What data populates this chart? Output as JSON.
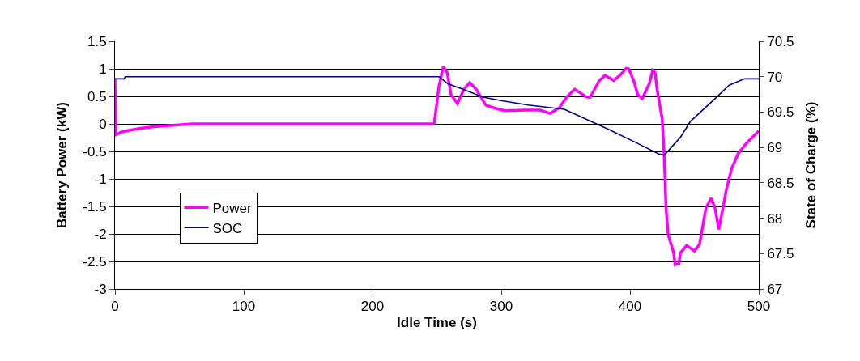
{
  "chart_data": {
    "type": "line",
    "xlabel": "Idle Time (s)",
    "ylabel": "Battery Power (kW)",
    "y2label": "State of Charge (%)",
    "xlim": [
      0,
      500
    ],
    "xticks": [
      0,
      100,
      200,
      300,
      400,
      500
    ],
    "ylim": [
      -3,
      1.5
    ],
    "yticks": [
      -3,
      -2.5,
      -2,
      -1.5,
      -1,
      -0.5,
      0,
      0.5,
      1,
      1.5
    ],
    "y2lim": [
      67,
      70.5
    ],
    "y2ticks": [
      67,
      67.5,
      68,
      68.5,
      69,
      69.5,
      70,
      70.5
    ],
    "grid": "y",
    "legend": "bottom left",
    "marker": "none",
    "line_style": "solid",
    "series": [
      {
        "name": "Power",
        "color": "#ff00ff",
        "x": [
          0,
          0.6,
          5,
          10,
          20,
          30,
          60,
          150,
          247,
          248,
          251.6,
          255,
          258,
          261,
          266,
          271,
          275.5,
          280.5,
          288,
          296,
          302.5,
          319.5,
          330,
          338,
          345,
          351,
          357,
          366,
          369,
          376,
          380.5,
          387.5,
          393,
          397,
          399,
          403,
          406,
          409.5,
          415,
          417.6,
          419.5,
          421,
          425,
          426.5,
          428,
          429.6,
          434,
          435,
          438,
          439,
          444,
          450,
          454,
          459,
          463,
          466,
          469,
          475,
          479,
          484,
          490.5,
          500
        ],
        "values": [
          0.82,
          -0.2,
          -0.15,
          -0.12,
          -0.08,
          -0.05,
          0,
          0,
          0,
          0.02,
          0.68,
          1.04,
          0.93,
          0.53,
          0.37,
          0.63,
          0.75,
          0.63,
          0.34,
          0.28,
          0.24,
          0.25,
          0.25,
          0.19,
          0.29,
          0.49,
          0.63,
          0.49,
          0.48,
          0.78,
          0.88,
          0.79,
          0.9,
          1.01,
          1.0,
          0.78,
          0.53,
          0.46,
          0.73,
          0.97,
          0.93,
          0.63,
          0.09,
          -0.54,
          -1.53,
          -2.01,
          -2.35,
          -2.56,
          -2.54,
          -2.35,
          -2.21,
          -2.31,
          -2.19,
          -1.53,
          -1.35,
          -1.53,
          -1.92,
          -1.18,
          -0.81,
          -0.54,
          -0.35,
          -0.13
        ]
      },
      {
        "name": "SOC",
        "color": "#000080",
        "axis": "y2",
        "x": [
          0,
          7,
          8,
          251.6,
          258.5,
          269,
          286,
          300.6,
          321,
          349,
          363.5,
          384,
          405.6,
          422,
          426.5,
          439,
          447,
          466,
          477,
          489,
          500
        ],
        "values": [
          69.97,
          69.97,
          70.0,
          70.0,
          69.9,
          69.83,
          69.71,
          69.66,
          69.6,
          69.54,
          69.42,
          69.25,
          69.06,
          68.91,
          68.89,
          69.14,
          69.37,
          69.69,
          69.88,
          69.97,
          69.97
        ]
      }
    ]
  }
}
